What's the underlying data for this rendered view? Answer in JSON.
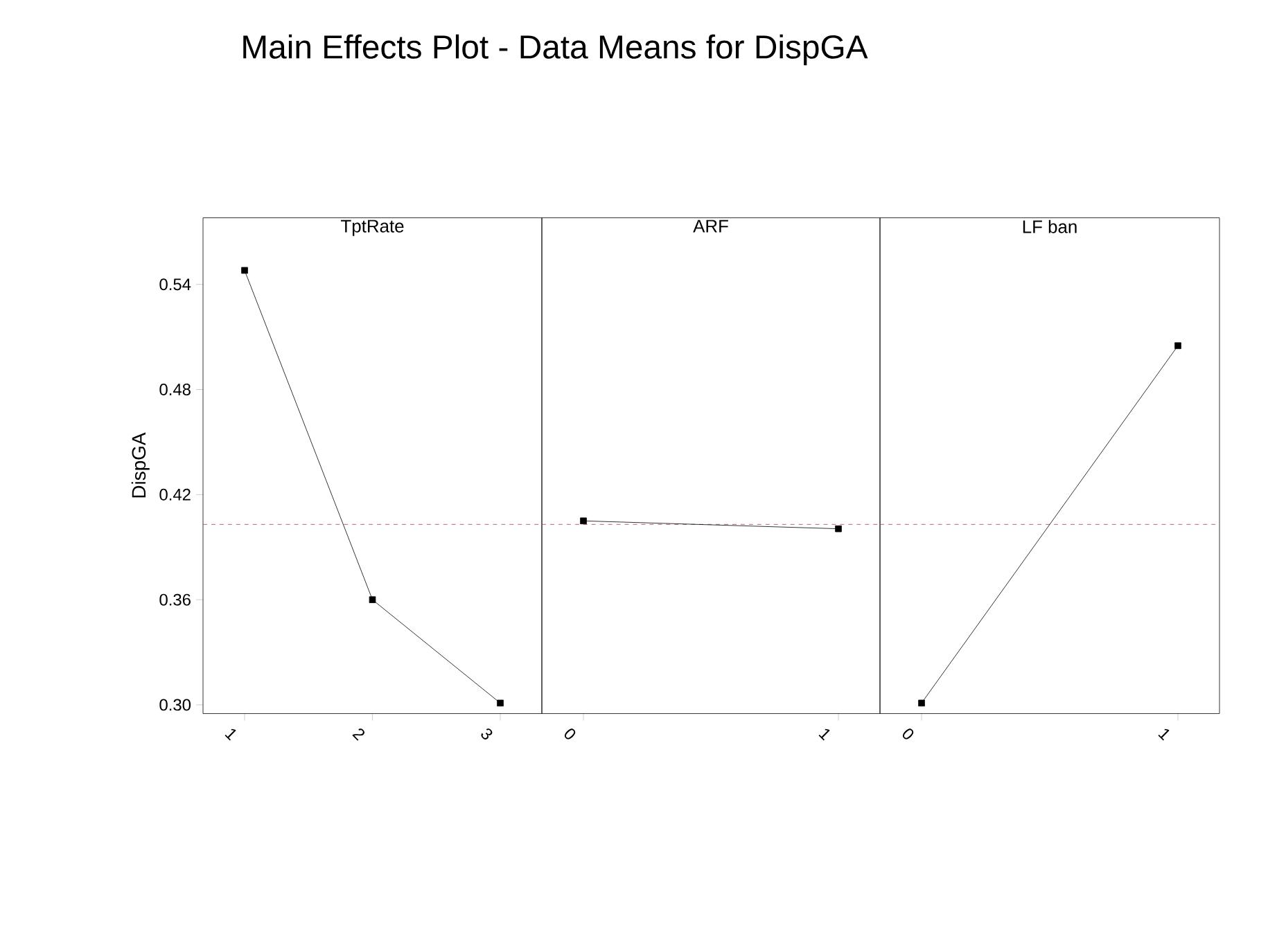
{
  "chart_data": [
    {
      "type": "line",
      "title": "Main Effects Plot - Data Means for DispGA",
      "subtitle": "TptRate",
      "ylabel": "DispGA",
      "categories": [
        "1",
        "2",
        "3"
      ],
      "values": [
        0.548,
        0.36,
        0.301
      ],
      "color": "#000000",
      "marker": "square",
      "ylim": [
        0.295,
        0.578
      ],
      "yticks": [
        {
          "value": 0.3,
          "label": "0.30"
        },
        0.36,
        0.42,
        0.48,
        0.54
      ],
      "ref_lines": [
        {
          "axis": "y",
          "value": 0.403,
          "color": "#a0405a",
          "line_style": "dashed"
        }
      ]
    },
    {
      "type": "line",
      "subtitle": "ARF",
      "categories": [
        "0",
        "1"
      ],
      "values": [
        0.405,
        0.4005
      ],
      "color": "#000000",
      "marker": "square",
      "ylim": [
        0.295,
        0.578
      ],
      "tick_labels": "x",
      "ref_lines": [
        {
          "axis": "y",
          "value": 0.403,
          "color": "#a0405a",
          "line_style": "dashed"
        }
      ]
    },
    {
      "type": "line",
      "subtitle": "LF ban",
      "categories": [
        "0",
        "1"
      ],
      "values": [
        0.301,
        0.505
      ],
      "color": "#000000",
      "marker": "square",
      "ylim": [
        0.295,
        0.578
      ],
      "tick_labels": "x",
      "ref_lines": [
        {
          "axis": "y",
          "value": 0.403,
          "color": "#a0405a",
          "line_style": "dashed"
        }
      ]
    }
  ]
}
